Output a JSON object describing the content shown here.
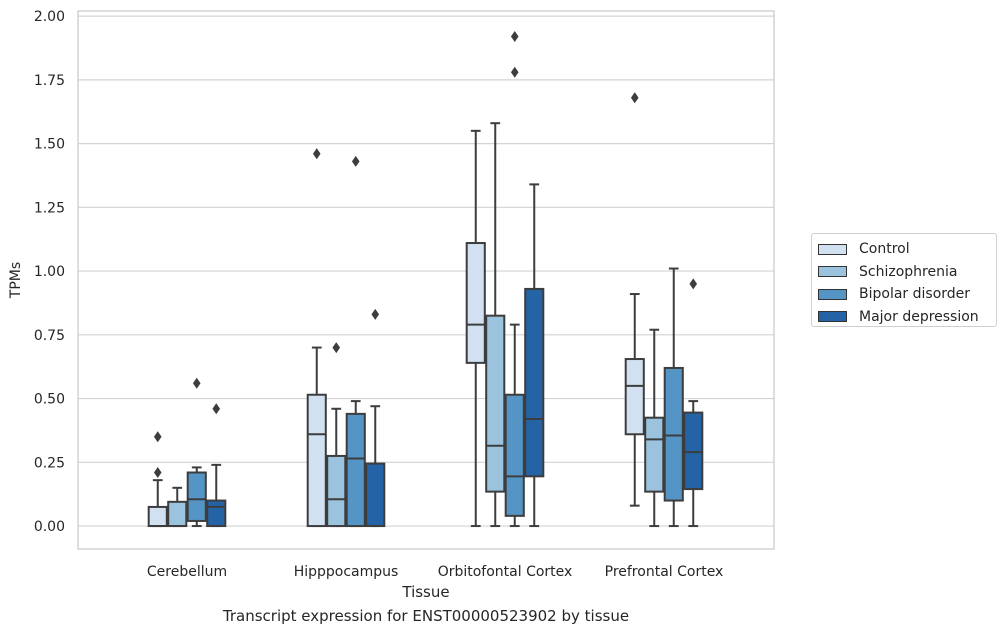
{
  "caption": "Transcript expression for ENST00000523902 by tissue",
  "chart_data": {
    "type": "box",
    "xlabel": "Tissue",
    "ylabel": "TPMs",
    "ylim": [
      -0.09,
      2.02
    ],
    "yticks": [
      0.0,
      0.25,
      0.5,
      0.75,
      1.0,
      1.25,
      1.5,
      1.75,
      2.0
    ],
    "ytick_labels": [
      "0.00",
      "0.25",
      "0.50",
      "0.75",
      "1.00",
      "1.25",
      "1.50",
      "1.75",
      "2.00"
    ],
    "grid": true,
    "legend_position": "right",
    "categories": [
      "Cerebellum",
      "Hipppocampus",
      "Orbitofontal Cortex",
      "Prefrontal Cortex"
    ],
    "series": [
      {
        "name": "Control",
        "color": "#d1e1f1",
        "boxes": [
          {
            "whislo": 0.0,
            "q1": 0.0,
            "med": 0.0,
            "q3": 0.075,
            "whishi": 0.18,
            "fliers": [
              0.21,
              0.35
            ]
          },
          {
            "whislo": 0.0,
            "q1": 0.0,
            "med": 0.36,
            "q3": 0.515,
            "whishi": 0.7,
            "fliers": [
              1.46
            ]
          },
          {
            "whislo": 0.0,
            "q1": 0.64,
            "med": 0.79,
            "q3": 1.11,
            "whishi": 1.55,
            "fliers": []
          },
          {
            "whislo": 0.08,
            "q1": 0.36,
            "med": 0.55,
            "q3": 0.655,
            "whishi": 0.91,
            "fliers": [
              1.68
            ]
          }
        ]
      },
      {
        "name": "Schizophrenia",
        "color": "#9cc3dd",
        "boxes": [
          {
            "whislo": 0.0,
            "q1": 0.0,
            "med": 0.0,
            "q3": 0.095,
            "whishi": 0.15,
            "fliers": []
          },
          {
            "whislo": 0.0,
            "q1": 0.0,
            "med": 0.105,
            "q3": 0.275,
            "whishi": 0.46,
            "fliers": [
              0.7
            ]
          },
          {
            "whislo": 0.0,
            "q1": 0.135,
            "med": 0.315,
            "q3": 0.825,
            "whishi": 1.58,
            "fliers": []
          },
          {
            "whislo": 0.0,
            "q1": 0.135,
            "med": 0.34,
            "q3": 0.425,
            "whishi": 0.77,
            "fliers": []
          }
        ]
      },
      {
        "name": "Bipolar disorder",
        "color": "#5495c5",
        "boxes": [
          {
            "whislo": 0.0,
            "q1": 0.02,
            "med": 0.105,
            "q3": 0.21,
            "whishi": 0.23,
            "fliers": [
              0.56
            ]
          },
          {
            "whislo": 0.0,
            "q1": 0.0,
            "med": 0.265,
            "q3": 0.44,
            "whishi": 0.49,
            "fliers": [
              1.43
            ]
          },
          {
            "whislo": 0.0,
            "q1": 0.04,
            "med": 0.195,
            "q3": 0.515,
            "whishi": 0.79,
            "fliers": [
              1.78,
              1.92
            ]
          },
          {
            "whislo": 0.0,
            "q1": 0.1,
            "med": 0.355,
            "q3": 0.62,
            "whishi": 1.01,
            "fliers": []
          }
        ]
      },
      {
        "name": "Major depression",
        "color": "#2363a6",
        "boxes": [
          {
            "whislo": 0.0,
            "q1": 0.0,
            "med": 0.075,
            "q3": 0.1,
            "whishi": 0.24,
            "fliers": [
              0.46
            ]
          },
          {
            "whislo": 0.0,
            "q1": 0.0,
            "med": 0.0,
            "q3": 0.245,
            "whishi": 0.47,
            "fliers": [
              0.83
            ]
          },
          {
            "whislo": 0.0,
            "q1": 0.195,
            "med": 0.42,
            "q3": 0.93,
            "whishi": 1.34,
            "fliers": []
          },
          {
            "whislo": 0.0,
            "q1": 0.145,
            "med": 0.29,
            "q3": 0.445,
            "whishi": 0.49,
            "fliers": [
              0.95
            ]
          }
        ]
      }
    ]
  }
}
